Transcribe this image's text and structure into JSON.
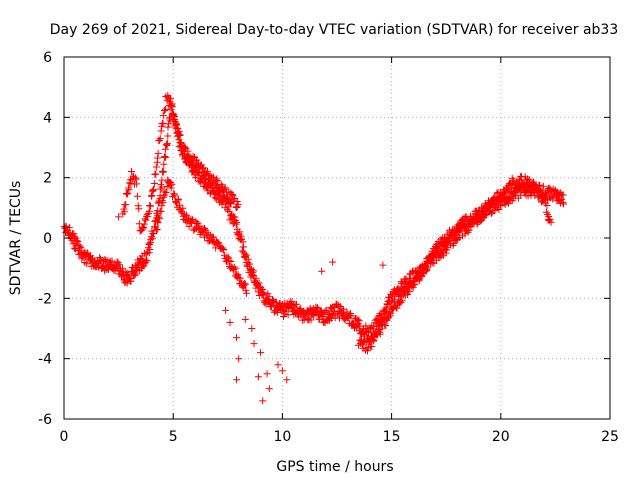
{
  "chart_data": {
    "type": "scatter",
    "title": "Day 269 of 2021, Sidereal Day-to-day VTEC variation (SDTVAR) for receiver ab33",
    "xlabel": "GPS time / hours",
    "ylabel": "SDTVAR / TECUs",
    "xlim": [
      0,
      25
    ],
    "ylim": [
      -6,
      6
    ],
    "xticks": [
      0,
      5,
      10,
      15,
      20,
      25
    ],
    "yticks": [
      -6,
      -4,
      -2,
      0,
      2,
      4,
      6
    ],
    "grid": true,
    "marker": "+",
    "series": [
      {
        "name": "SDTVAR",
        "color": "#ff0000",
        "trend_x": [
          0,
          0.3,
          0.7,
          1.2,
          2.0,
          2.5,
          2.9,
          3.3,
          3.8,
          4.2,
          4.6,
          4.9,
          5.2,
          5.6,
          6.0,
          6.5,
          7.0,
          7.6,
          8.0,
          8.5,
          9.0,
          9.5,
          10.0,
          10.5,
          11.0,
          11.5,
          12.0,
          12.5,
          13.0,
          13.5,
          14.0,
          14.5,
          15.0,
          15.5,
          16.0,
          16.5,
          17.0,
          17.5,
          18.0,
          18.5,
          19.0,
          19.5,
          20.0,
          20.5,
          21.0,
          21.5,
          22.0,
          22.5,
          22.9
        ],
        "trend_y": [
          0.3,
          0.1,
          -0.4,
          -0.8,
          -0.9,
          -1.0,
          -1.4,
          -1.0,
          -0.6,
          0.5,
          2.5,
          4.3,
          3.5,
          2.6,
          2.2,
          1.8,
          1.5,
          1.0,
          0.1,
          -1.0,
          -1.8,
          -2.2,
          -2.4,
          -2.3,
          -2.6,
          -2.5,
          -2.6,
          -2.4,
          -2.6,
          -2.9,
          -3.2,
          -2.7,
          -2.0,
          -1.6,
          -1.3,
          -1.0,
          -0.6,
          -0.3,
          0.1,
          0.4,
          0.7,
          1.0,
          1.2,
          1.4,
          1.6,
          1.6,
          1.5,
          1.4,
          1.3
        ],
        "branches": [
          {
            "x": [
              2.7,
              2.9,
              3.1,
              3.3,
              3.5,
              3.8,
              4.1,
              4.4,
              4.7,
              4.9,
              5.1,
              5.3,
              5.6,
              6.0,
              6.5,
              7.0,
              7.5,
              8.0
            ],
            "y": [
              0.8,
              1.5,
              2.1,
              1.9,
              0.2,
              0.6,
              1.6,
              3.4,
              4.6,
              4.5,
              3.8,
              3.1,
              2.8,
              2.5,
              2.1,
              1.8,
              1.4,
              1.1
            ]
          },
          {
            "x": [
              4.2,
              4.5,
              4.8,
              5.0,
              5.3,
              5.6,
              6.0,
              6.4,
              6.8,
              7.2,
              7.6,
              8.0,
              8.4
            ],
            "y": [
              0.2,
              1.2,
              1.9,
              1.5,
              1.0,
              0.6,
              0.4,
              0.2,
              -0.1,
              -0.4,
              -0.8,
              -1.3,
              -1.8
            ]
          },
          {
            "x": [
              13.5,
              14.0,
              14.5,
              15.0,
              15.5,
              16.0,
              16.5,
              17.0,
              17.5,
              18.0,
              18.5,
              19.0,
              19.5,
              20.0,
              20.5,
              21.0,
              21.5,
              22.0,
              22.3
            ],
            "y": [
              -3.5,
              -3.6,
              -3.0,
              -2.4,
              -1.9,
              -1.5,
              -1.0,
              -0.4,
              0.0,
              0.3,
              0.6,
              0.8,
              1.1,
              1.5,
              1.8,
              1.9,
              1.7,
              1.2,
              0.4
            ]
          }
        ],
        "outliers": [
          {
            "x": 7.4,
            "y": -2.4
          },
          {
            "x": 7.6,
            "y": -2.8
          },
          {
            "x": 7.9,
            "y": -3.3
          },
          {
            "x": 8.0,
            "y": -4.0
          },
          {
            "x": 7.9,
            "y": -4.7
          },
          {
            "x": 8.7,
            "y": -3.5
          },
          {
            "x": 8.9,
            "y": -4.6
          },
          {
            "x": 9.1,
            "y": -5.4
          },
          {
            "x": 9.4,
            "y": -5.0
          },
          {
            "x": 9.3,
            "y": -4.5
          },
          {
            "x": 9.8,
            "y": -4.2
          },
          {
            "x": 10.2,
            "y": -4.7
          },
          {
            "x": 8.3,
            "y": -2.7
          },
          {
            "x": 8.6,
            "y": -3.0
          },
          {
            "x": 9.0,
            "y": -3.8
          },
          {
            "x": 10.0,
            "y": -4.4
          },
          {
            "x": 12.3,
            "y": -0.8
          },
          {
            "x": 11.8,
            "y": -1.1
          },
          {
            "x": 14.6,
            "y": -0.9
          },
          {
            "x": 2.5,
            "y": 0.7
          },
          {
            "x": 7.6,
            "y": 0.6
          },
          {
            "x": 8.2,
            "y": -0.3
          }
        ]
      }
    ]
  }
}
